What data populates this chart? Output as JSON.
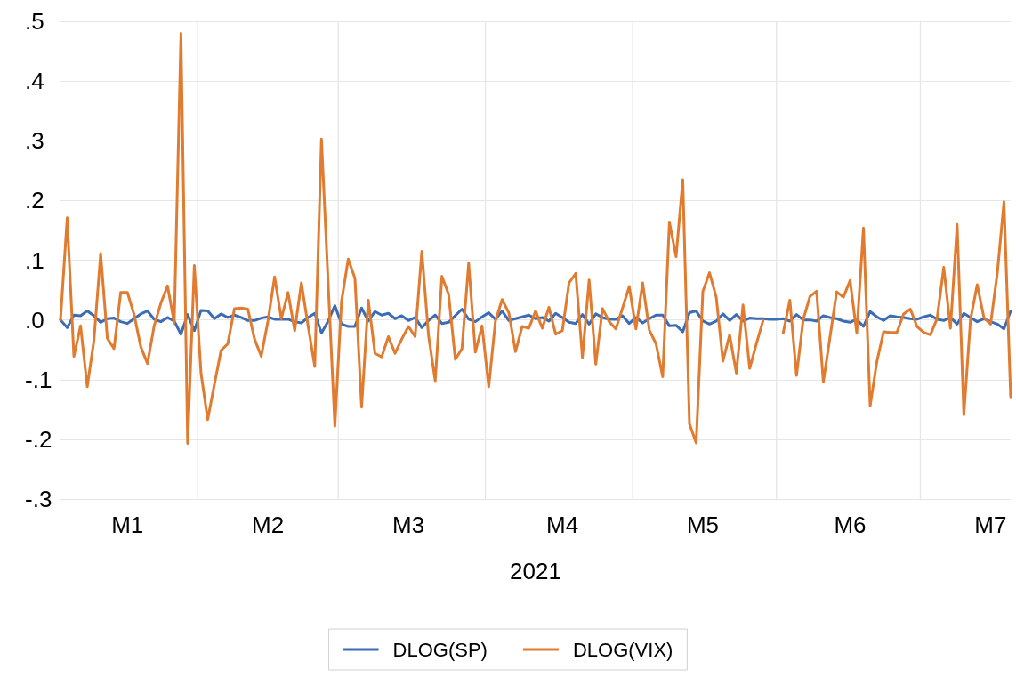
{
  "chart_data": {
    "type": "line",
    "xlabel": "2021",
    "categories": [
      null,
      null,
      null,
      null,
      null,
      null,
      null,
      null,
      null,
      null,
      "M1",
      null,
      null,
      null,
      null,
      null,
      null,
      null,
      null,
      null,
      null,
      null,
      null,
      null,
      null,
      null,
      null,
      null,
      null,
      null,
      null,
      "M2",
      null,
      null,
      null,
      null,
      null,
      null,
      null,
      null,
      null,
      null,
      null,
      null,
      null,
      null,
      null,
      null,
      null,
      null,
      null,
      null,
      "M3",
      null,
      null,
      null,
      null,
      null,
      null,
      null,
      null,
      null,
      null,
      null,
      null,
      null,
      null,
      null,
      null,
      null,
      null,
      null,
      null,
      null,
      null,
      "M4",
      null,
      null,
      null,
      null,
      null,
      null,
      null,
      null,
      null,
      null,
      null,
      null,
      null,
      null,
      null,
      null,
      null,
      null,
      null,
      null,
      "M5",
      null,
      null,
      null,
      null,
      null,
      null,
      null,
      null,
      null,
      null,
      null,
      null,
      null,
      null,
      null,
      null,
      null,
      null,
      null,
      null,
      null,
      "M6",
      null,
      null,
      null,
      null,
      null,
      null,
      null,
      null,
      null,
      null,
      null,
      null,
      null,
      null,
      null,
      null,
      null,
      null,
      null,
      null,
      "M7",
      null,
      null,
      null
    ],
    "series": [
      {
        "name": "DLOG(SP)",
        "color": "#3b6db5",
        "values": [
          0,
          -0.013,
          0.008,
          0.007,
          0.015,
          0.007,
          -0.004,
          0.002,
          0.003,
          -0.003,
          -0.006,
          0.002,
          0.01,
          0.015,
          0.001,
          -0.003,
          0.004,
          -0.002,
          -0.024,
          0.009,
          -0.018,
          0.016,
          0.015,
          0.002,
          0.01,
          0.004,
          0.008,
          0.004,
          -0.001,
          -0.001,
          0.003,
          0.005,
          0.001,
          0.001,
          0.001,
          -0.003,
          -0.005,
          0.004,
          0.011,
          -0.022,
          -0.002,
          0.024,
          -0.007,
          -0.011,
          -0.011,
          0.02,
          -0.002,
          0.014,
          0.008,
          0.011,
          0.002,
          0.007,
          -0.001,
          0.004,
          -0.013,
          -0.001,
          0.008,
          -0.006,
          -0.004,
          0.007,
          0.018,
          0.001,
          -0.003,
          0.005,
          0.012,
          0.001,
          0.015,
          -0.001,
          0.002,
          0.005,
          0.008,
          0.002,
          0.004,
          -0.002,
          0.011,
          0.004,
          -0.004,
          -0.006,
          0.009,
          -0.007,
          0.01,
          0.004,
          0.001,
          0.001,
          0.007,
          -0.006,
          0.004,
          -0.005,
          0.002,
          0.008,
          0.008,
          -0.01,
          -0.009,
          -0.02,
          0.012,
          0.015,
          -0.002,
          -0.007,
          -0.002,
          0.01,
          -0.001,
          0.009,
          -0.002,
          0.003,
          0.002,
          0.002,
          0.001,
          0.001,
          0.002,
          -0.002,
          0.009,
          0,
          0,
          -0.002,
          0.007,
          0.004,
          0.002,
          -0.002,
          -0.004,
          0.001,
          -0.011,
          0.014,
          0.005,
          -0.001,
          0.007,
          0.005,
          0.004,
          0.002,
          0.001,
          0.005,
          0.008,
          0.001,
          -0.001,
          0.004,
          -0.007,
          0.011,
          0.004,
          -0.003,
          0.002,
          -0.003,
          -0.007,
          -0.015,
          0.015
        ]
      },
      {
        "name": "DLOG(VIX)",
        "color": "#e07b2f",
        "values": [
          0,
          0.171,
          -0.061,
          -0.01,
          -0.112,
          -0.034,
          0.111,
          -0.031,
          -0.048,
          0.046,
          0.046,
          0.009,
          -0.045,
          -0.073,
          -0.01,
          0.028,
          0.057,
          -0.005,
          0.48,
          -0.207,
          0.091,
          -0.089,
          -0.167,
          -0.108,
          -0.051,
          -0.04,
          0.019,
          0.02,
          0.018,
          -0.032,
          -0.061,
          -0.002,
          0.072,
          0.002,
          0.046,
          -0.018,
          0.062,
          -0.01,
          -0.078,
          0.303,
          0.062,
          -0.178,
          0.031,
          0.102,
          0.07,
          -0.146,
          0.033,
          -0.056,
          -0.062,
          -0.028,
          -0.056,
          -0.032,
          -0.011,
          -0.028,
          0.115,
          -0.026,
          -0.102,
          0.073,
          0.043,
          -0.066,
          -0.048,
          0.095,
          -0.054,
          -0.01,
          -0.112,
          -0.002,
          0.034,
          0.012,
          -0.053,
          -0.011,
          -0.014,
          0.015,
          -0.014,
          0.021,
          -0.024,
          -0.018,
          0.062,
          0.078,
          -0.063,
          0.067,
          -0.074,
          0.019,
          -0.003,
          -0.015,
          0.02,
          0.056,
          -0.015,
          0.062,
          -0.017,
          -0.04,
          -0.095,
          0.164,
          0.106,
          0.235,
          -0.174,
          -0.206,
          0.048,
          0.079,
          0.038,
          -0.069,
          -0.025,
          -0.089,
          0.025,
          -0.081,
          -0.04,
          -0.001,
          null,
          null,
          -0.022,
          0.033,
          -0.093,
          0.001,
          0.039,
          0.048,
          -0.104,
          -0.029,
          0.047,
          0.038,
          0.066,
          -0.022,
          0.154,
          -0.144,
          -0.07,
          -0.02,
          -0.021,
          -0.021,
          0.01,
          0.018,
          -0.011,
          -0.021,
          -0.025,
          0.002,
          0.088,
          -0.014,
          0.16,
          -0.159,
          0.001,
          0.059,
          0.004,
          -0.007,
          0.078,
          0.198,
          -0.129
        ]
      }
    ],
    "ylim": [
      -0.3,
      0.5
    ],
    "yticks": [
      {
        "value": 0.5,
        "label": ".5"
      },
      {
        "value": 0.4,
        "label": ".4"
      },
      {
        "value": 0.3,
        "label": ".3"
      },
      {
        "value": 0.2,
        "label": ".2"
      },
      {
        "value": 0.1,
        "label": ".1"
      },
      {
        "value": 0,
        "label": ".0"
      },
      {
        "value": -0.1,
        "label": "-.1"
      },
      {
        "value": -0.2,
        "label": "-.2"
      },
      {
        "value": -0.3,
        "label": "-.3"
      }
    ],
    "grid": true,
    "legend": "bottom",
    "marker": "none",
    "line_style": "solid"
  }
}
